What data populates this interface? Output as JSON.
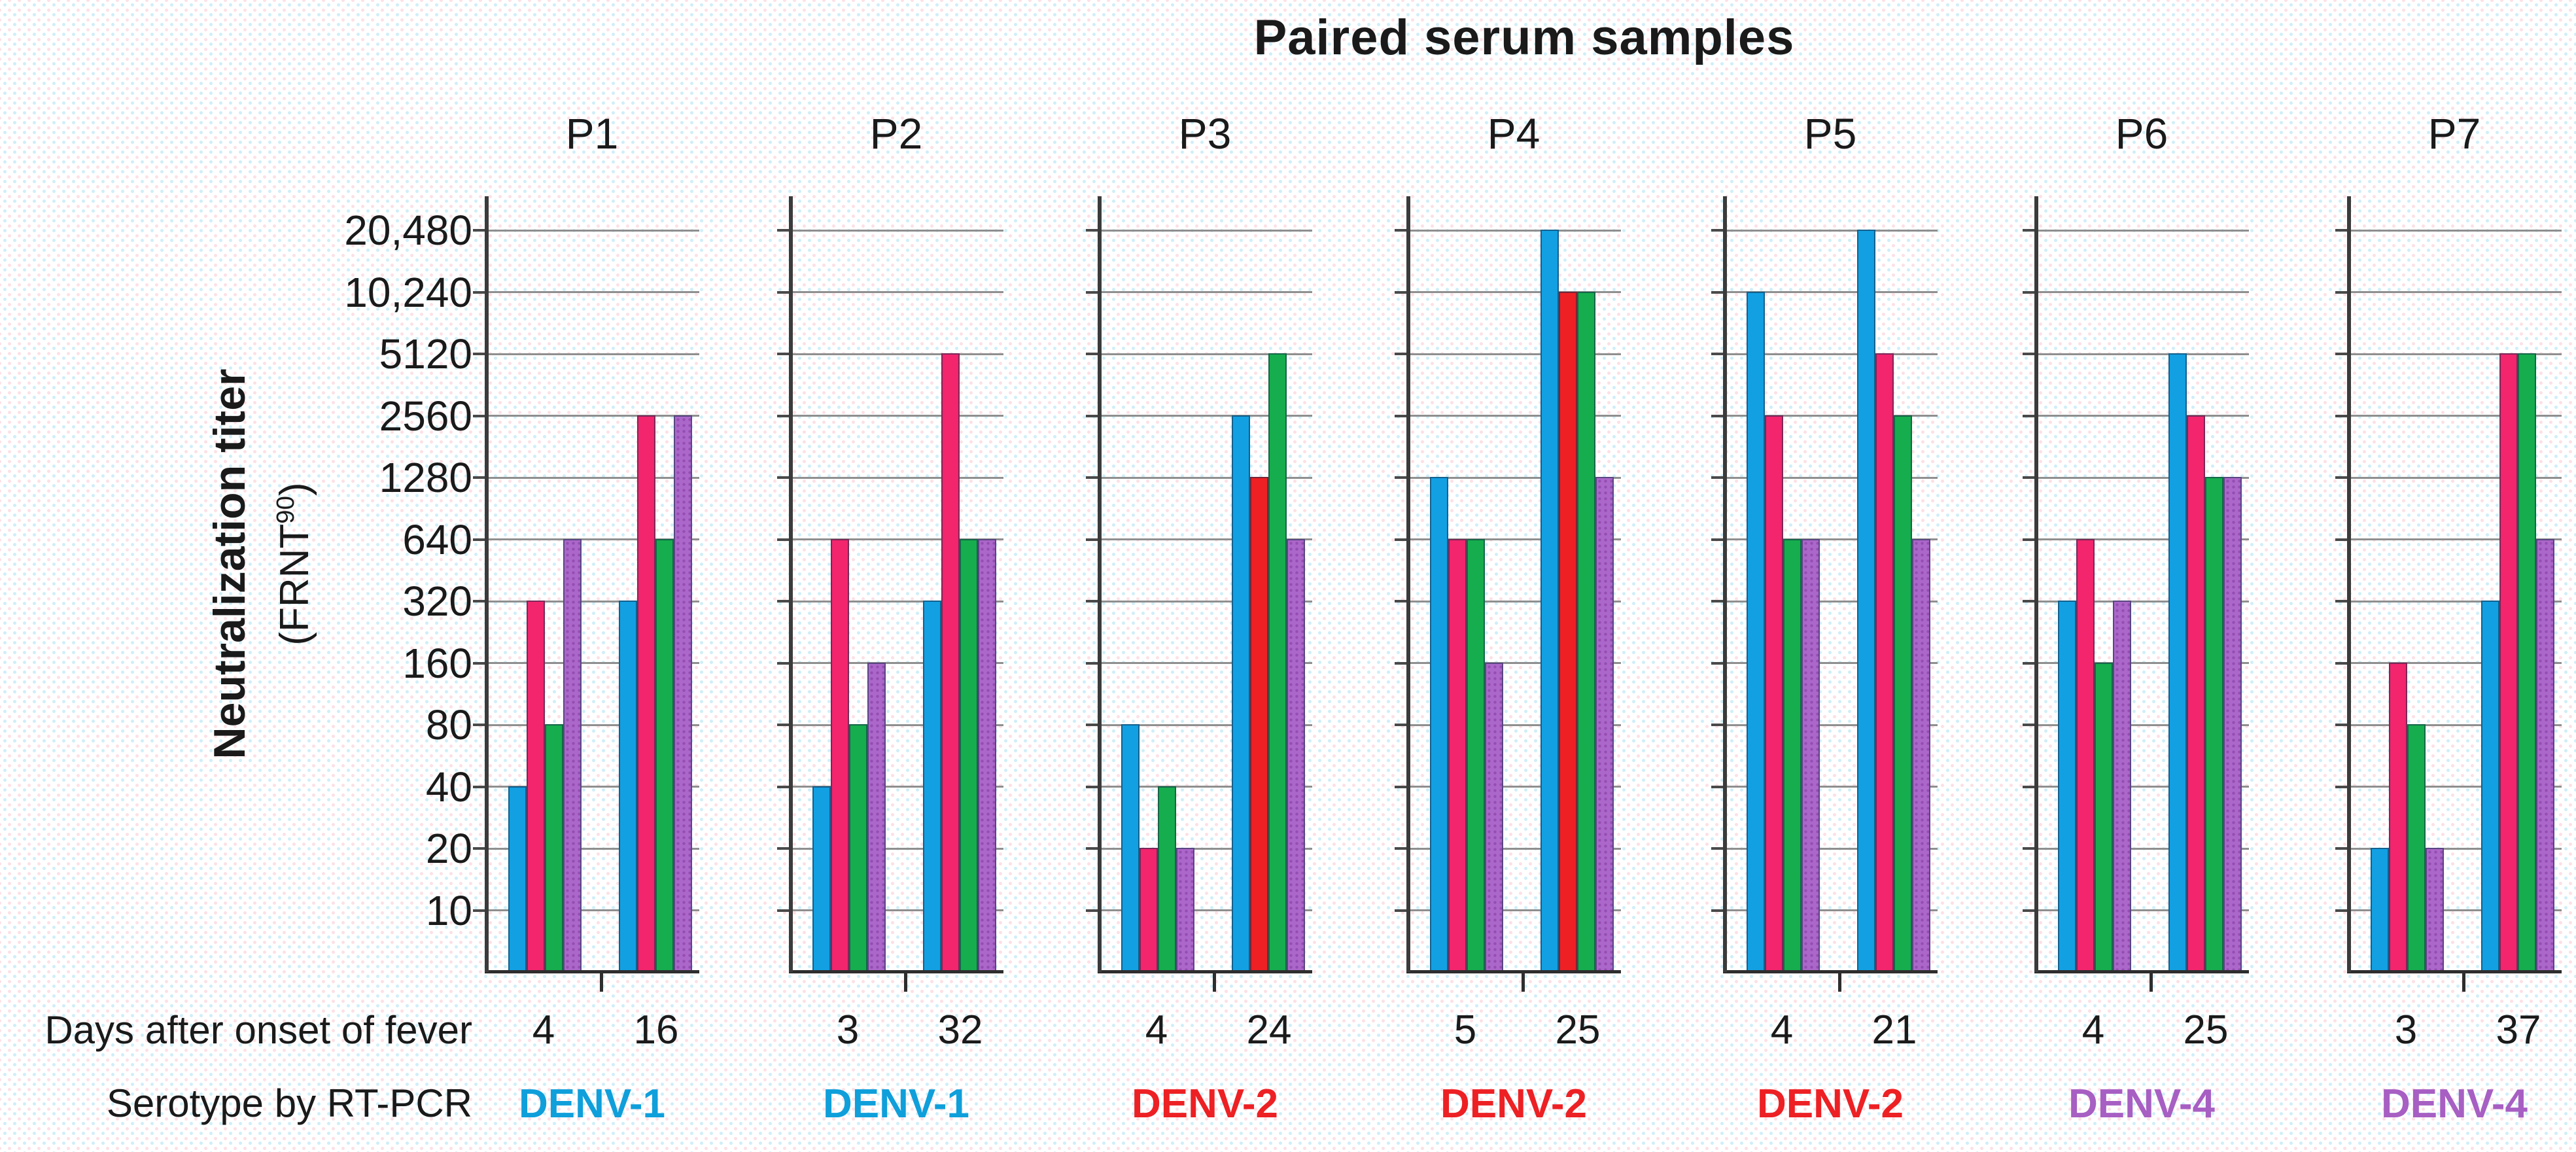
{
  "title": "Paired serum samples",
  "y_axis": {
    "label_main": "Neutralization titer",
    "label_sub_prefix": "(FRNT",
    "label_sub_sup": "90",
    "label_sub_suffix": ")",
    "tick_labels": [
      "20,480",
      "10,240",
      "5120",
      "2560",
      "1280",
      "640",
      "320",
      "160",
      "80",
      "40",
      "20",
      "10"
    ]
  },
  "footer_rows": {
    "days_label": "Days after onset of fever",
    "serotype_label": "Serotype by RT-PCR"
  },
  "palette": {
    "blue": "#12a0e3",
    "pink": "#f2256d",
    "red": "#ee2024",
    "green": "#16ad4e",
    "purple": "#ab67c9",
    "serotype_denv1": "#0f9fdb",
    "serotype_denv2": "#ed2024",
    "serotype_denv4": "#a75fc3",
    "gridline": "#8f8f8f",
    "axis": "#3b3b3b",
    "text": "#1a1a1a"
  },
  "chart_data": {
    "type": "bar",
    "y_scale": "log2",
    "ylim": [
      10,
      20480
    ],
    "y_tick_values": [
      20480,
      10240,
      5120,
      2560,
      1280,
      640,
      320,
      160,
      80,
      40,
      20,
      10
    ],
    "grid": true,
    "legend": "none",
    "bar_colors_per_group": [
      "blue",
      "pink-or-red",
      "green",
      "purple"
    ],
    "panels": [
      {
        "label": "P1",
        "serotype": "DENV-1",
        "serotype_color": "serotype_denv1",
        "samples": [
          {
            "day": "4",
            "values": [
              40,
              320,
              80,
              640
            ],
            "colors": [
              "blue",
              "pink",
              "green",
              "purple"
            ]
          },
          {
            "day": "16",
            "values": [
              320,
              2560,
              640,
              2560
            ],
            "colors": [
              "blue",
              "pink",
              "green",
              "purple"
            ]
          }
        ]
      },
      {
        "label": "P2",
        "serotype": "DENV-1",
        "serotype_color": "serotype_denv1",
        "samples": [
          {
            "day": "3",
            "values": [
              40,
              640,
              80,
              160
            ],
            "colors": [
              "blue",
              "pink",
              "green",
              "purple"
            ]
          },
          {
            "day": "32",
            "values": [
              320,
              5120,
              640,
              640
            ],
            "colors": [
              "blue",
              "pink",
              "green",
              "purple"
            ]
          }
        ]
      },
      {
        "label": "P3",
        "serotype": "DENV-2",
        "serotype_color": "serotype_denv2",
        "samples": [
          {
            "day": "4",
            "values": [
              80,
              20,
              40,
              20
            ],
            "colors": [
              "blue",
              "pink",
              "green",
              "purple"
            ]
          },
          {
            "day": "24",
            "values": [
              2560,
              1280,
              5120,
              640
            ],
            "colors": [
              "blue",
              "red",
              "green",
              "purple"
            ]
          }
        ]
      },
      {
        "label": "P4",
        "serotype": "DENV-2",
        "serotype_color": "serotype_denv2",
        "samples": [
          {
            "day": "5",
            "values": [
              1280,
              640,
              640,
              160
            ],
            "colors": [
              "blue",
              "pink",
              "green",
              "purple"
            ]
          },
          {
            "day": "25",
            "values": [
              20480,
              10240,
              10240,
              1280
            ],
            "colors": [
              "blue",
              "red",
              "green",
              "purple"
            ]
          }
        ]
      },
      {
        "label": "P5",
        "serotype": "DENV-2",
        "serotype_color": "serotype_denv2",
        "samples": [
          {
            "day": "4",
            "values": [
              10240,
              2560,
              640,
              640
            ],
            "colors": [
              "blue",
              "pink",
              "green",
              "purple"
            ]
          },
          {
            "day": "21",
            "values": [
              20480,
              5120,
              2560,
              640
            ],
            "colors": [
              "blue",
              "pink",
              "green",
              "purple"
            ]
          }
        ]
      },
      {
        "label": "P6",
        "serotype": "DENV-4",
        "serotype_color": "serotype_denv4",
        "samples": [
          {
            "day": "4",
            "values": [
              320,
              640,
              160,
              320
            ],
            "colors": [
              "blue",
              "pink",
              "green",
              "purple"
            ]
          },
          {
            "day": "25",
            "values": [
              5120,
              2560,
              1280,
              1280
            ],
            "colors": [
              "blue",
              "pink",
              "green",
              "purple"
            ]
          }
        ]
      },
      {
        "label": "P7",
        "serotype": "DENV-4",
        "serotype_color": "serotype_denv4",
        "samples": [
          {
            "day": "3",
            "values": [
              20,
              160,
              80,
              20
            ],
            "colors": [
              "blue",
              "pink",
              "green",
              "purple"
            ]
          },
          {
            "day": "37",
            "values": [
              320,
              5120,
              5120,
              640
            ],
            "colors": [
              "blue",
              "pink",
              "green",
              "purple"
            ]
          }
        ]
      }
    ]
  }
}
